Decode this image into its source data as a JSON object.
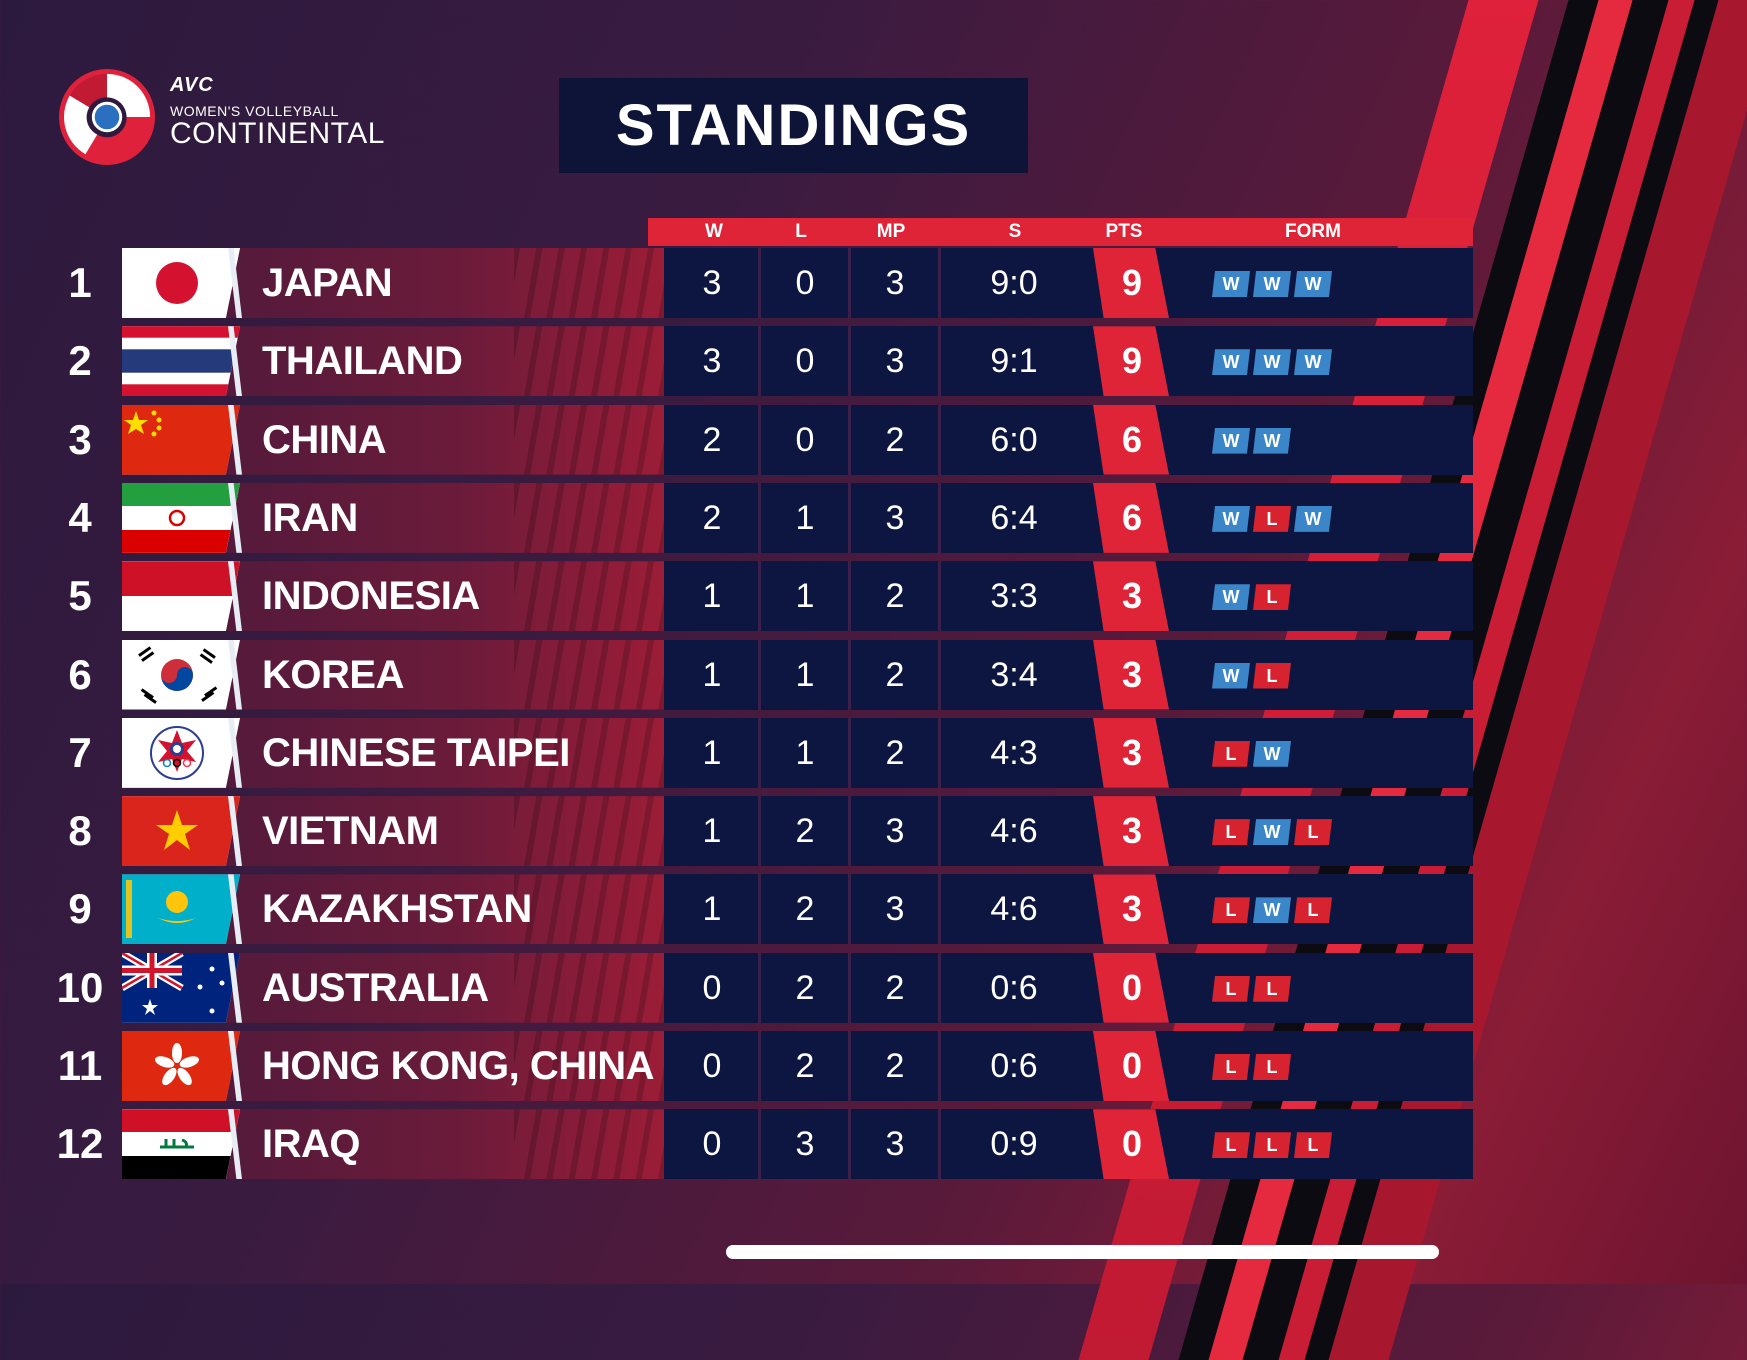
{
  "logo": {
    "avc": "AVC",
    "line1": "WOMEN'S VOLLEYBALL",
    "line2": "CONTINENTAL"
  },
  "title": "STANDINGS",
  "columns": [
    "W",
    "L",
    "MP",
    "S",
    "PTS",
    "FORM"
  ],
  "colors": {
    "win": "#3b86c9",
    "loss": "#d7222f",
    "accent": "#e02437",
    "panel": "#0d1640"
  },
  "standings": [
    {
      "rank": "1",
      "team": "JAPAN",
      "flag": "japan-flag",
      "w": "3",
      "l": "0",
      "mp": "3",
      "s": "9:0",
      "pts": "9",
      "form": [
        "W",
        "W",
        "W"
      ]
    },
    {
      "rank": "2",
      "team": "THAILAND",
      "flag": "thailand-flag",
      "w": "3",
      "l": "0",
      "mp": "3",
      "s": "9:1",
      "pts": "9",
      "form": [
        "W",
        "W",
        "W"
      ]
    },
    {
      "rank": "3",
      "team": "CHINA",
      "flag": "china-flag",
      "w": "2",
      "l": "0",
      "mp": "2",
      "s": "6:0",
      "pts": "6",
      "form": [
        "W",
        "W"
      ]
    },
    {
      "rank": "4",
      "team": "IRAN",
      "flag": "iran-flag",
      "w": "2",
      "l": "1",
      "mp": "3",
      "s": "6:4",
      "pts": "6",
      "form": [
        "W",
        "L",
        "W"
      ]
    },
    {
      "rank": "5",
      "team": "INDONESIA",
      "flag": "indonesia-flag",
      "w": "1",
      "l": "1",
      "mp": "2",
      "s": "3:3",
      "pts": "3",
      "form": [
        "W",
        "L"
      ]
    },
    {
      "rank": "6",
      "team": "KOREA",
      "flag": "korea-flag",
      "w": "1",
      "l": "1",
      "mp": "2",
      "s": "3:4",
      "pts": "3",
      "form": [
        "W",
        "L"
      ]
    },
    {
      "rank": "7",
      "team": "CHINESE TAIPEI",
      "flag": "chinese-taipei-flag",
      "w": "1",
      "l": "1",
      "mp": "2",
      "s": "4:3",
      "pts": "3",
      "form": [
        "L",
        "W"
      ]
    },
    {
      "rank": "8",
      "team": "VIETNAM",
      "flag": "vietnam-flag",
      "w": "1",
      "l": "2",
      "mp": "3",
      "s": "4:6",
      "pts": "3",
      "form": [
        "L",
        "W",
        "L"
      ]
    },
    {
      "rank": "9",
      "team": "KAZAKHSTAN",
      "flag": "kazakhstan-flag",
      "w": "1",
      "l": "2",
      "mp": "3",
      "s": "4:6",
      "pts": "3",
      "form": [
        "L",
        "W",
        "L"
      ]
    },
    {
      "rank": "10",
      "team": "AUSTRALIA",
      "flag": "australia-flag",
      "w": "0",
      "l": "2",
      "mp": "2",
      "s": "0:6",
      "pts": "0",
      "form": [
        "L",
        "L"
      ]
    },
    {
      "rank": "11",
      "team": "HONG KONG, CHINA",
      "flag": "hong-kong-flag",
      "w": "0",
      "l": "2",
      "mp": "2",
      "s": "0:6",
      "pts": "0",
      "form": [
        "L",
        "L"
      ]
    },
    {
      "rank": "12",
      "team": "IRAQ",
      "flag": "iraq-flag",
      "w": "0",
      "l": "3",
      "mp": "3",
      "s": "0:9",
      "pts": "0",
      "form": [
        "L",
        "L",
        "L"
      ]
    }
  ]
}
